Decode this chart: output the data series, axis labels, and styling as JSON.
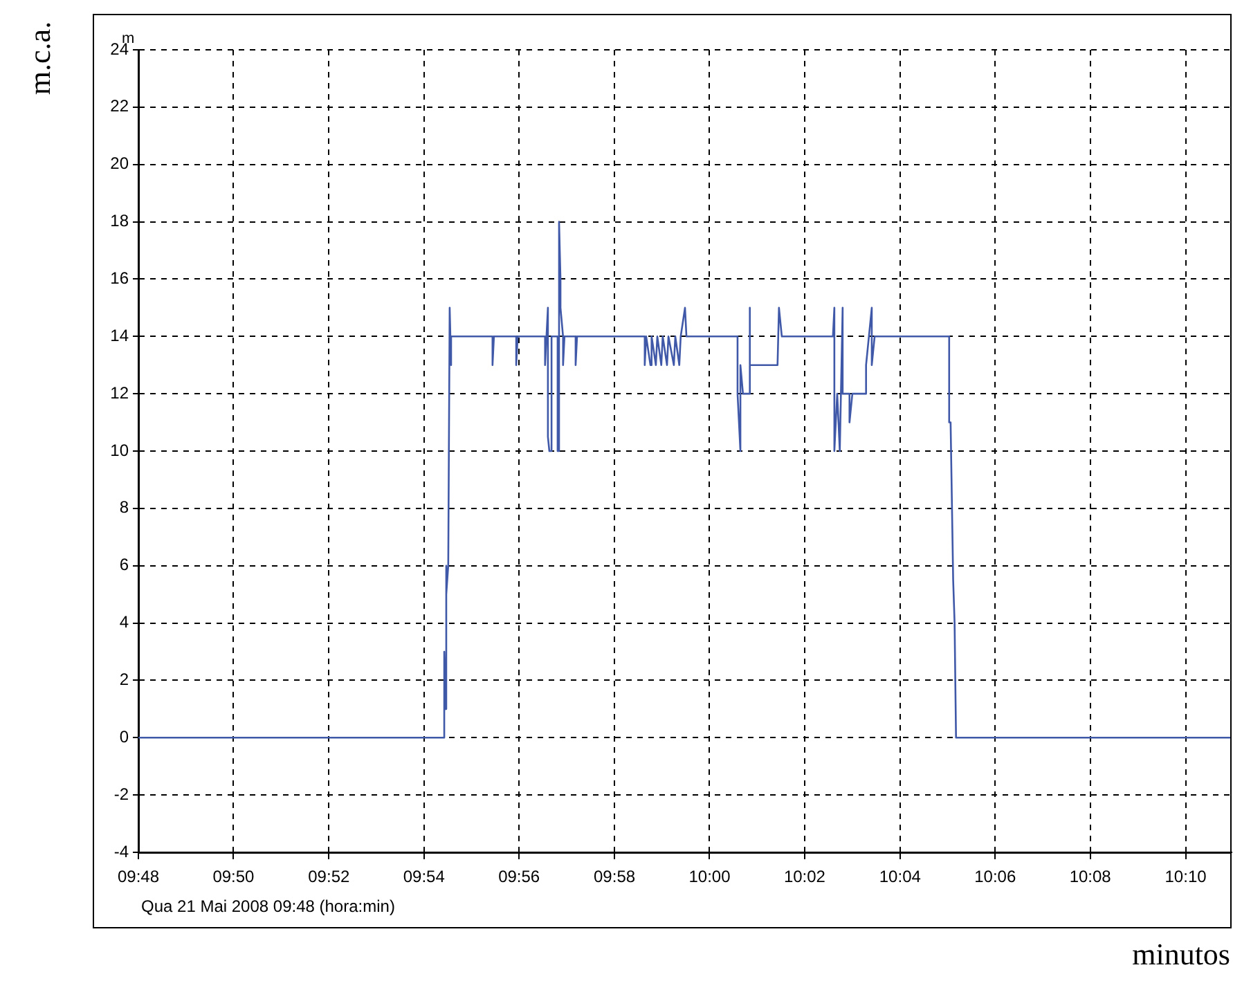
{
  "chart_data": {
    "type": "line",
    "ylabel": "m.c.a.",
    "xlabel": "minutos",
    "annotations": [
      "m",
      "Qua 21 Mai 2008 09:48 (hora:min)"
    ],
    "series": [
      {
        "color": "#4058a8",
        "x": [
          9.8,
          9.9071,
          9.9071,
          9.9076,
          9.9076,
          9.908,
          9.9085,
          9.909,
          9.9095,
          9.9095,
          9.91,
          9.924,
          9.924,
          9.9245,
          9.9323,
          9.9323,
          9.9328,
          9.9424,
          9.9424,
          9.9429,
          9.9434,
          9.9434,
          9.9439,
          9.9444,
          9.9444,
          9.9448,
          9.9448,
          9.9468,
          9.9468,
          9.9473,
          9.9473,
          9.9478,
          9.9478,
          9.9487,
          9.9487,
          9.9492,
          9.9531,
          9.9531,
          9.9536,
          9.9773,
          9.9773,
          9.9778,
          9.9793,
          9.9797,
          9.9812,
          9.9817,
          9.9831,
          9.9836,
          9.9851,
          9.9856,
          9.9875,
          9.988,
          9.9894,
          9.9899,
          9.9914,
          9.9919,
          10.0098,
          10.0098,
          10.0108,
          10.0108,
          10.0117,
          10.0137,
          10.0141,
          10.0141,
          10.0238,
          10.0243,
          10.0253,
          10.0432,
          10.0437,
          10.0437,
          10.0447,
          10.0456,
          10.0466,
          10.0466,
          10.049,
          10.049,
          10.05,
          10.0548,
          10.0548,
          10.0568,
          10.0568,
          10.0578,
          10.0597,
          10.0839,
          10.0839,
          10.0844,
          10.0853,
          10.0858,
          10.0863,
          10.1828
        ],
        "values": [
          0,
          0,
          3,
          1,
          6,
          5,
          6,
          15,
          13,
          14,
          14,
          14,
          13,
          14,
          14,
          13,
          14,
          14,
          13,
          14,
          15,
          10.5,
          10,
          10,
          14,
          14,
          14,
          14,
          10,
          10,
          18,
          16,
          15,
          14,
          13,
          14,
          14,
          13,
          14,
          14,
          13,
          14,
          13,
          14,
          13,
          14,
          13,
          14,
          13,
          14,
          13,
          14,
          13,
          14,
          15,
          14,
          14,
          12,
          10,
          13,
          12,
          12,
          15,
          13,
          13,
          15,
          14,
          14,
          15,
          10,
          12,
          10,
          15,
          12,
          12,
          11,
          12,
          12,
          13,
          15,
          13,
          14,
          14,
          14,
          11,
          11,
          5.5,
          4,
          0,
          0
        ]
      }
    ],
    "xlim": [
      9.8,
      10.1828
    ],
    "xticks": [
      {
        "value": 9.8,
        "label": "09:48"
      },
      {
        "value": 9.8333,
        "label": "09:50"
      },
      {
        "value": 9.8667,
        "label": "09:52"
      },
      {
        "value": 9.9,
        "label": "09:54"
      },
      {
        "value": 9.9333,
        "label": "09:56"
      },
      {
        "value": 9.9667,
        "label": "09:58"
      },
      {
        "value": 10,
        "label": "10:00"
      },
      {
        "value": 10.0333,
        "label": "10:02"
      },
      {
        "value": 10.0667,
        "label": "10:04"
      },
      {
        "value": 10.1,
        "label": "10:06"
      },
      {
        "value": 10.1333,
        "label": "10:08"
      },
      {
        "value": 10.1667,
        "label": "10:10"
      }
    ],
    "ylim": [
      -4,
      24
    ],
    "yticks": [
      -4,
      -2,
      0,
      2,
      4,
      6,
      8,
      10,
      12,
      14,
      16,
      18,
      20,
      22,
      24
    ],
    "grid": true,
    "legend": false,
    "marker": "none",
    "line_style": "solid"
  }
}
